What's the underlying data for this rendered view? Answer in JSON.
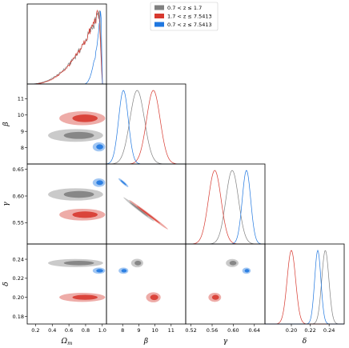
{
  "chart_data": {
    "type": "corner",
    "params": [
      "Omega_m",
      "beta",
      "gamma",
      "delta"
    ],
    "axes": [
      {
        "key": "Omega_m",
        "label": "Ω",
        "label_sub": "m",
        "range": [
          0.1,
          1.05
        ],
        "ticks": [
          0.2,
          0.4,
          0.6,
          0.8,
          1.0
        ],
        "tick_labels": [
          "0.2",
          "0.4",
          "0.6",
          "0.8",
          "1.0"
        ]
      },
      {
        "key": "beta",
        "label": "β",
        "label_sub": "",
        "range": [
          7.0,
          11.9
        ],
        "ticks": [
          8,
          9,
          10,
          11
        ],
        "tick_labels": [
          "8",
          "9",
          "10",
          "11"
        ]
      },
      {
        "key": "gamma",
        "label": "γ",
        "label_sub": "",
        "range": [
          0.51,
          0.66
        ],
        "ticks": [
          0.52,
          0.56,
          0.6,
          0.64
        ],
        "tick_labels": [
          "0.52",
          "0.56",
          "0.60",
          "0.64"
        ]
      },
      {
        "key": "delta",
        "label": "δ",
        "label_sub": "",
        "range": [
          0.172,
          0.256
        ],
        "ticks": [
          0.2,
          0.22,
          0.24
        ],
        "tick_labels": [
          "0.20",
          "0.22",
          "0.24"
        ]
      }
    ],
    "row_ticks": {
      "beta": {
        "ticks": [
          8,
          9,
          10,
          11
        ],
        "tick_labels": [
          "8",
          "9",
          "10",
          "11"
        ]
      },
      "gamma": {
        "ticks": [
          0.55,
          0.6,
          0.65
        ],
        "tick_labels": [
          "0.55",
          "0.60",
          "0.65"
        ]
      },
      "delta": {
        "ticks": [
          0.18,
          0.2,
          0.22,
          0.24
        ],
        "tick_labels": [
          "0.18",
          "0.20",
          "0.22",
          "0.24"
        ]
      }
    },
    "legend": {
      "placement": "top-center"
    },
    "series": [
      {
        "name": "0.7 < z ≤ 1.7",
        "color": "#808080",
        "marginals": {
          "Omega_m": {
            "shape": "skewed",
            "start": 0.12,
            "peak": 0.97,
            "end": 1.0
          },
          "beta": {
            "mean": 8.9,
            "sigma": 0.45
          },
          "gamma": {
            "mean": 0.598,
            "sigma": 0.012
          },
          "delta": {
            "mean": 0.236,
            "sigma": 0.0038
          }
        },
        "contours": {
          "Omega_m|beta": {
            "center": [
              0.68,
              8.75
            ],
            "span": [
              0.66,
              0.78
            ]
          },
          "Omega_m|gamma": {
            "center": [
              0.68,
              0.603
            ],
            "span": [
              0.66,
              0.023
            ]
          },
          "Omega_m|delta": {
            "center": [
              0.68,
              0.236
            ],
            "span": [
              0.66,
              0.0085
            ]
          },
          "beta|gamma": {
            "center": [
              9.0,
              0.575
            ],
            "span": [
              1.9,
              0.045
            ],
            "corr": -0.99
          },
          "beta|delta": {
            "center": [
              8.9,
              0.236
            ],
            "span": [
              0.75,
              0.009
            ]
          },
          "gamma|delta": {
            "center": [
              0.598,
              0.236
            ],
            "span": [
              0.024,
              0.0085
            ]
          }
        }
      },
      {
        "name": "1.7 < z ≤ 7.5413",
        "color": "#d7392f",
        "marginals": {
          "Omega_m": {
            "shape": "skewed",
            "start": 0.15,
            "peak": 0.96,
            "end": 1.0
          },
          "beta": {
            "mean": 9.9,
            "sigma": 0.42
          },
          "gamma": {
            "mean": 0.565,
            "sigma": 0.012
          },
          "delta": {
            "mean": 0.2,
            "sigma": 0.0045
          }
        },
        "contours": {
          "Omega_m|beta": {
            "center": [
              0.76,
              9.8
            ],
            "span": [
              0.55,
              0.85
            ]
          },
          "Omega_m|gamma": {
            "center": [
              0.76,
              0.565
            ],
            "span": [
              0.55,
              0.022
            ]
          },
          "Omega_m|delta": {
            "center": [
              0.76,
              0.2
            ],
            "span": [
              0.55,
              0.0095
            ]
          },
          "beta|gamma": {
            "center": [
              9.6,
              0.565
            ],
            "span": [
              2.4,
              0.055
            ],
            "corr": -0.99
          },
          "beta|delta": {
            "center": [
              9.9,
              0.2
            ],
            "span": [
              0.9,
              0.0105
            ]
          },
          "gamma|delta": {
            "center": [
              0.565,
              0.2
            ],
            "span": [
              0.024,
              0.0095
            ]
          }
        }
      },
      {
        "name": "0.7 < z ≤ 7.5413",
        "color": "#1f77e0",
        "marginals": {
          "Omega_m": {
            "shape": "skewed",
            "start": 0.78,
            "peak": 0.985,
            "end": 1.0
          },
          "beta": {
            "mean": 8.05,
            "sigma": 0.3
          },
          "gamma": {
            "mean": 0.625,
            "sigma": 0.008
          },
          "delta": {
            "mean": 0.228,
            "sigma": 0.0033
          }
        },
        "contours": {
          "Omega_m|beta": {
            "center": [
              0.96,
              8.05
            ],
            "span": [
              0.15,
              0.56
            ]
          },
          "Omega_m|gamma": {
            "center": [
              0.96,
              0.625
            ],
            "span": [
              0.15,
              0.016
            ]
          },
          "Omega_m|delta": {
            "center": [
              0.96,
              0.228
            ],
            "span": [
              0.15,
              0.0065
            ]
          },
          "beta|gamma": {
            "center": [
              8.05,
              0.625
            ],
            "span": [
              0.6,
              0.016
            ],
            "corr": -0.99
          },
          "beta|delta": {
            "center": [
              8.05,
              0.228
            ],
            "span": [
              0.6,
              0.0065
            ]
          },
          "gamma|delta": {
            "center": [
              0.625,
              0.228
            ],
            "span": [
              0.016,
              0.0065
            ]
          }
        }
      }
    ]
  }
}
